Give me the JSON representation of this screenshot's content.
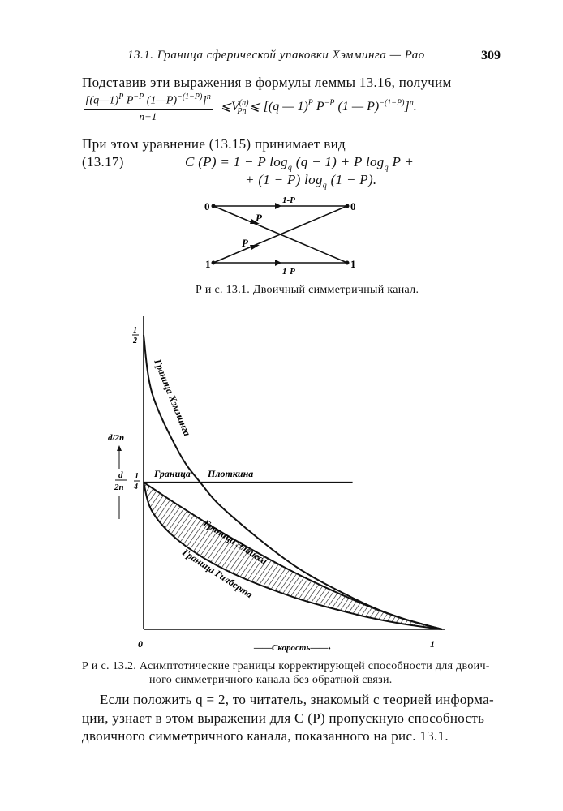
{
  "header": {
    "running_title": "13.1. Граница сферической упаковки Хэмминга — Рао",
    "page_number": "309"
  },
  "para1": "Подставив эти выражения в формулы леммы 13.16, получим",
  "ineq": {
    "numerator": "[(q−1)^P P^−P (1−P)^−(1−P)]^n",
    "num_html_parts": [
      "[(q—1)",
      "P",
      " P",
      "−P",
      " (1—P)",
      "−(1−P)",
      "]",
      "n"
    ],
    "denominator": "n+1",
    "middle": "⩽V",
    "middle_sup": "(n)",
    "middle_sub": "Pn",
    "right": [
      "⩽ [(q — 1)",
      "P",
      " P",
      "−P",
      " (1 — P)",
      "−(1−P)",
      "]",
      "n",
      "."
    ]
  },
  "para2": "При этом уравнение (13.15) принимает вид",
  "eq": {
    "number": "(13.17)",
    "line1": "C (P) = 1 − P log_q (q − 1) + P log_q P +",
    "line2": "+ (1 − P) log_q (1 − P).",
    "l1": [
      "C (P) = 1 − P log",
      "q",
      " (q − 1) + P log",
      "q",
      " P +"
    ],
    "l2": [
      "+ (1 − P) log",
      "q",
      " (1 − P)."
    ]
  },
  "fig1": {
    "in0": "0",
    "in1": "1",
    "out0": "0",
    "out1": "1",
    "top": "1-P",
    "bottom": "1-P",
    "cross1": "P",
    "cross2": "P",
    "caption": "Р и с.  13.1. Двоичный симметричный канал."
  },
  "chart_data": {
    "type": "line",
    "xlabel": "——Скорость——›",
    "ylabel": "d/2n",
    "ylabel_num": "d",
    "ylabel_den": "2n",
    "xlim": [
      0,
      1
    ],
    "ylim": [
      0,
      0.5
    ],
    "x_ticks": [
      "0",
      "1"
    ],
    "y_ticks": [
      {
        "value": 0.25,
        "num": "1",
        "den": "4"
      },
      {
        "value": 0.5,
        "num": "1",
        "den": "2"
      }
    ],
    "grid": false,
    "series": [
      {
        "name": "Граница Хэмминга",
        "x": [
          0,
          0.029,
          0.119,
          0.189,
          0.278,
          0.5,
          0.714,
          0.859,
          1
        ],
        "y": [
          0.5,
          0.4,
          0.3,
          0.25,
          0.2,
          0.11,
          0.05,
          0.02,
          0
        ]
      },
      {
        "name": "Граница Плоткина",
        "x": [
          0,
          0.7
        ],
        "y": [
          0.25,
          0.25
        ]
      },
      {
        "name": "Граница Элайеса",
        "x": [
          0,
          0.029,
          0.119,
          0.278,
          0.5,
          0.714,
          0.859,
          1
        ],
        "y": [
          0.25,
          0.24,
          0.21,
          0.16,
          0.098,
          0.0475,
          0.0196,
          0
        ]
      },
      {
        "name": "Граница Гилберта",
        "x": [
          0,
          0.029,
          0.119,
          0.278,
          0.5,
          0.714,
          0.859,
          1
        ],
        "y": [
          0.25,
          0.2,
          0.15,
          0.1,
          0.055,
          0.025,
          0.01,
          0
        ]
      }
    ],
    "shaded_between": [
      "Граница Элайеса",
      "Граница Гилберта"
    ],
    "plotkin_label_left": "Граница",
    "plotkin_label_right": "Плоткина"
  },
  "fig2_caption": {
    "line1": "Р и с.  13.2. Асимптотические границы корректирующей способности для двоич-",
    "line2": "ного симметричного канала без обратной связи."
  },
  "para3": {
    "line1": "Если положить q = 2, то читатель, знакомый с теорией информа-",
    "line2": "ции, узнает в этом выражении для C (P) пропускную способность",
    "line3": "двоичного симметричного канала, показанного на рис. 13.1."
  }
}
